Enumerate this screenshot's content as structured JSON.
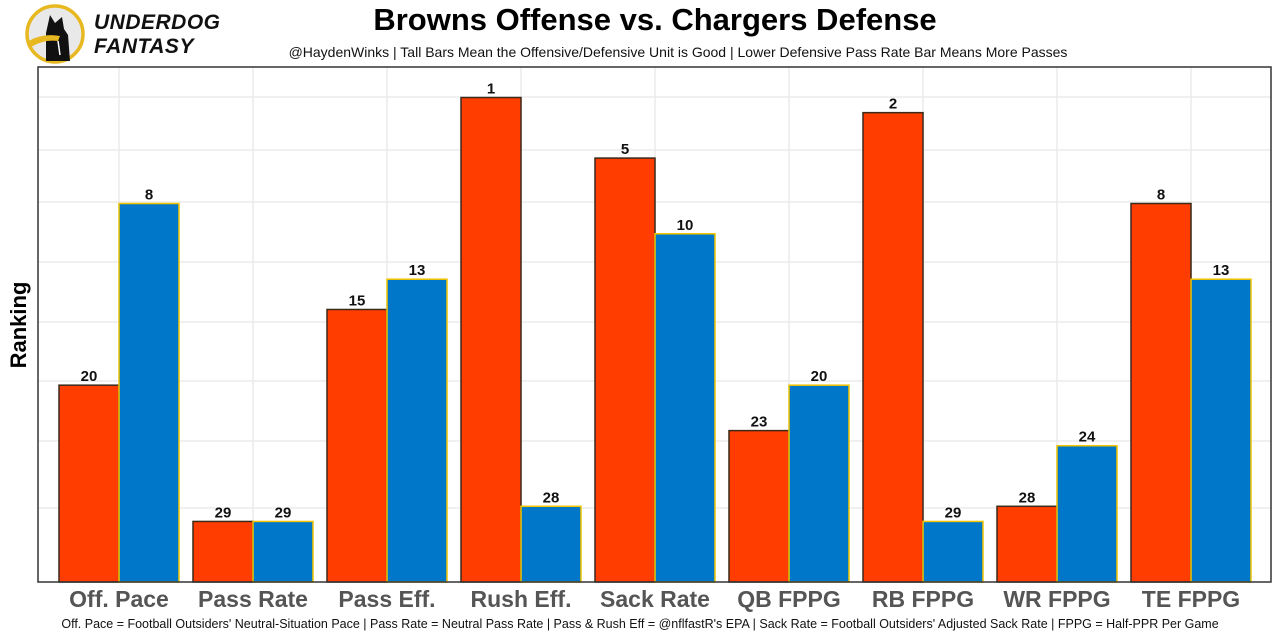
{
  "brand": {
    "line1": "UNDERDOG",
    "line2": "FANTASY"
  },
  "chart_data": {
    "type": "bar",
    "title": "Browns Offense vs. Chargers Defense",
    "subtitle": "@HaydenWinks | Tall Bars Mean the Offensive/Defensive Unit is Good | Lower Defensive Pass Rate Bar Means More Passes",
    "caption": "Off. Pace = Football Outsiders' Neutral-Situation Pace | Pass Rate = Neutral Pass Rate | Pass & Rush Eff = @nflfastR's EPA | Sack Rate = Football Outsiders' Adjusted Sack Rate | FPPG = Half-PPR Per Game",
    "xlabel": "",
    "ylabel": "Ranking",
    "categories": [
      "Off. Pace",
      "Pass Rate",
      "Pass Eff.",
      "Rush Eff.",
      "Sack Rate",
      "QB FPPG",
      "RB FPPG",
      "WR FPPG",
      "TE FPPG"
    ],
    "series": [
      {
        "name": "Browns Offense",
        "color": "#FF3D00",
        "outline": "#3a2a1a",
        "values": [
          20,
          29,
          15,
          1,
          5,
          23,
          2,
          28,
          8
        ]
      },
      {
        "name": "Chargers Defense",
        "color": "#0077C8",
        "outline": "#F2C500",
        "values": [
          8,
          29,
          13,
          28,
          10,
          20,
          29,
          24,
          13
        ]
      }
    ],
    "value_meaning": "rank (1 = best, bar height = 33 - rank)",
    "rank_scale_max": 33,
    "ylim": [
      0,
      34
    ],
    "y_ticks_shown": false,
    "grid": true,
    "legend": "none"
  }
}
